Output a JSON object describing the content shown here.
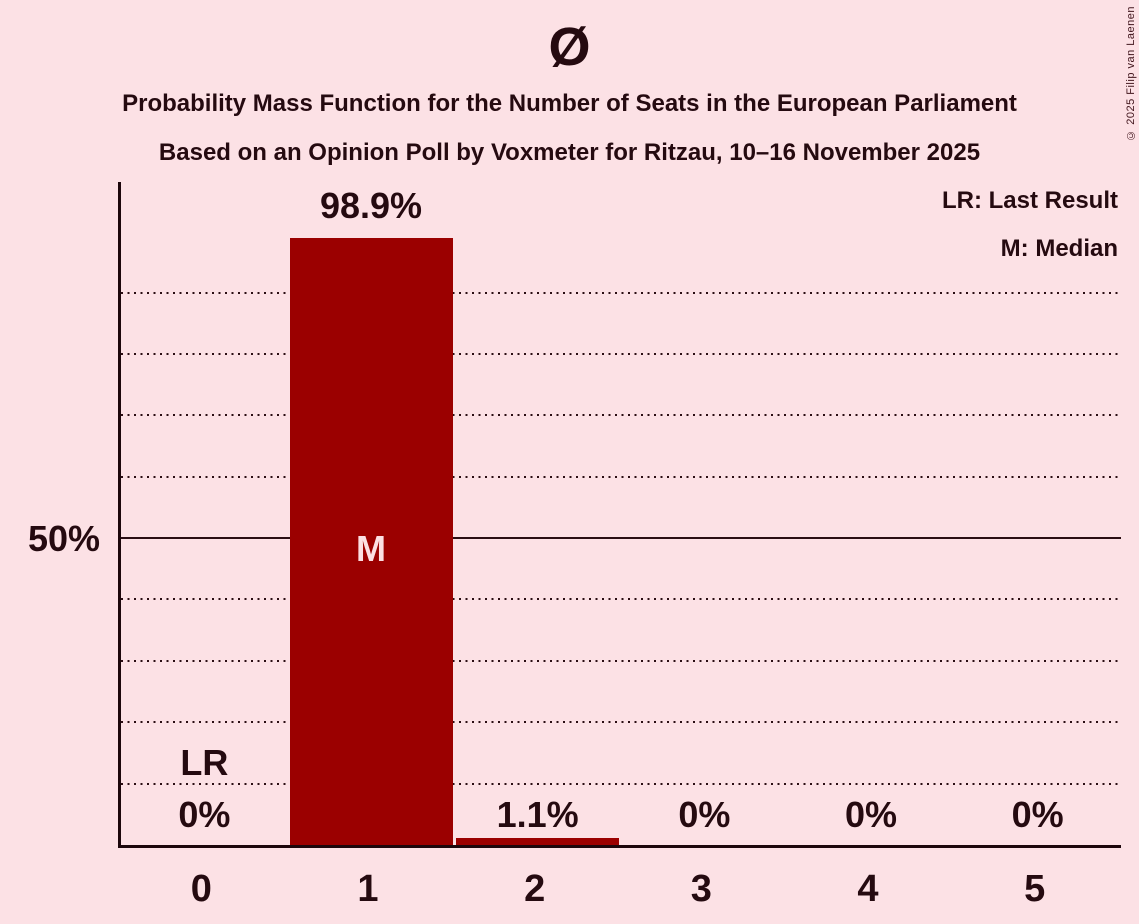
{
  "title": "Ø",
  "subtitle1": "Probability Mass Function for the Number of Seats in the European Parliament",
  "subtitle2": "Based on an Opinion Poll by Voxmeter for Ritzau, 10–16 November 2025",
  "copyright": "© 2025 Filip van Laenen",
  "legend": {
    "lr": "LR: Last Result",
    "m": "M: Median"
  },
  "y_axis": {
    "label_50": "50%"
  },
  "chart_data": {
    "type": "bar",
    "categories": [
      "0",
      "1",
      "2",
      "3",
      "4",
      "5"
    ],
    "values": [
      0,
      98.9,
      1.1,
      0,
      0,
      0
    ],
    "value_labels": [
      "0%",
      "98.9%",
      "1.1%",
      "0%",
      "0%",
      "0%"
    ],
    "title": "Ø",
    "xlabel": "",
    "ylabel": "",
    "ylim": [
      0,
      108
    ],
    "gridlines_percent": [
      10,
      20,
      30,
      40,
      60,
      70,
      80,
      90
    ],
    "solid_line_percent": 50,
    "grid": true,
    "legend_position": "top-right",
    "median_column": 1,
    "median_marker": "M",
    "last_result_column": 0,
    "last_result_marker": "LR",
    "bar_color": "#9b0000",
    "background_color": "#fce1e5",
    "text_color": "#250a10",
    "median_text_color": "#fcdfe3"
  }
}
